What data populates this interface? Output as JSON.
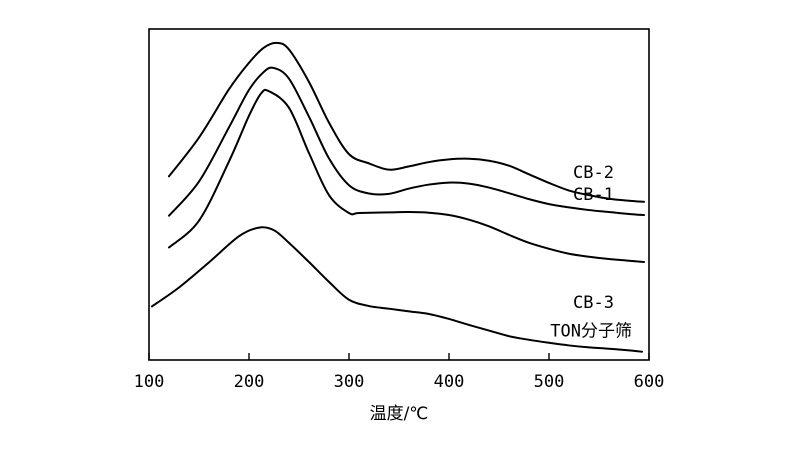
{
  "chart_data": {
    "type": "line",
    "xlabel": "温度/℃",
    "ylabel": "",
    "title": "",
    "xlim": [
      100,
      600
    ],
    "ylim": [
      0,
      1
    ],
    "x_ticks": [
      100,
      200,
      300,
      400,
      500,
      600
    ],
    "x_tick_labels": [
      "100",
      "200",
      "300",
      "400",
      "500",
      "600"
    ],
    "y_ticks_shown": false,
    "grid": false,
    "series": [
      {
        "name": "CB-2",
        "x": [
          120,
          150,
          180,
          200,
          215,
          228,
          240,
          260,
          280,
          300,
          320,
          340,
          360,
          380,
          400,
          420,
          440,
          460,
          480,
          500,
          520,
          540,
          560,
          580,
          595
        ],
        "y": [
          0.555,
          0.672,
          0.818,
          0.898,
          0.944,
          0.958,
          0.938,
          0.84,
          0.717,
          0.622,
          0.594,
          0.575,
          0.585,
          0.598,
          0.606,
          0.608,
          0.602,
          0.587,
          0.561,
          0.535,
          0.512,
          0.498,
          0.487,
          0.481,
          0.478
        ]
      },
      {
        "name": "CB-1",
        "x": [
          120,
          150,
          180,
          200,
          215,
          225,
          240,
          260,
          280,
          300,
          320,
          340,
          360,
          380,
          400,
          420,
          440,
          460,
          480,
          500,
          520,
          540,
          560,
          580,
          595
        ],
        "y": [
          0.436,
          0.539,
          0.703,
          0.816,
          0.871,
          0.882,
          0.85,
          0.735,
          0.609,
          0.528,
          0.503,
          0.502,
          0.518,
          0.53,
          0.536,
          0.533,
          0.521,
          0.504,
          0.486,
          0.471,
          0.461,
          0.453,
          0.447,
          0.441,
          0.438
        ]
      },
      {
        "name": "CB-3",
        "x": [
          120,
          150,
          180,
          200,
          212,
          220,
          240,
          260,
          280,
          300,
          310,
          340,
          360,
          380,
          400,
          420,
          440,
          460,
          480,
          500,
          520,
          540,
          560,
          580,
          595
        ],
        "y": [
          0.34,
          0.421,
          0.6,
          0.738,
          0.805,
          0.812,
          0.762,
          0.625,
          0.498,
          0.444,
          0.444,
          0.446,
          0.447,
          0.445,
          0.438,
          0.424,
          0.404,
          0.378,
          0.354,
          0.336,
          0.321,
          0.312,
          0.305,
          0.3,
          0.296
        ]
      },
      {
        "name": "TON分子筛",
        "x": [
          103,
          130,
          160,
          190,
          210,
          225,
          240,
          260,
          280,
          300,
          320,
          340,
          360,
          380,
          400,
          420,
          440,
          460,
          480,
          500,
          520,
          540,
          560,
          580,
          593
        ],
        "y": [
          0.162,
          0.219,
          0.295,
          0.374,
          0.4,
          0.392,
          0.354,
          0.296,
          0.236,
          0.182,
          0.163,
          0.155,
          0.147,
          0.139,
          0.124,
          0.106,
          0.089,
          0.072,
          0.061,
          0.052,
          0.044,
          0.038,
          0.034,
          0.029,
          0.025
        ]
      }
    ]
  }
}
